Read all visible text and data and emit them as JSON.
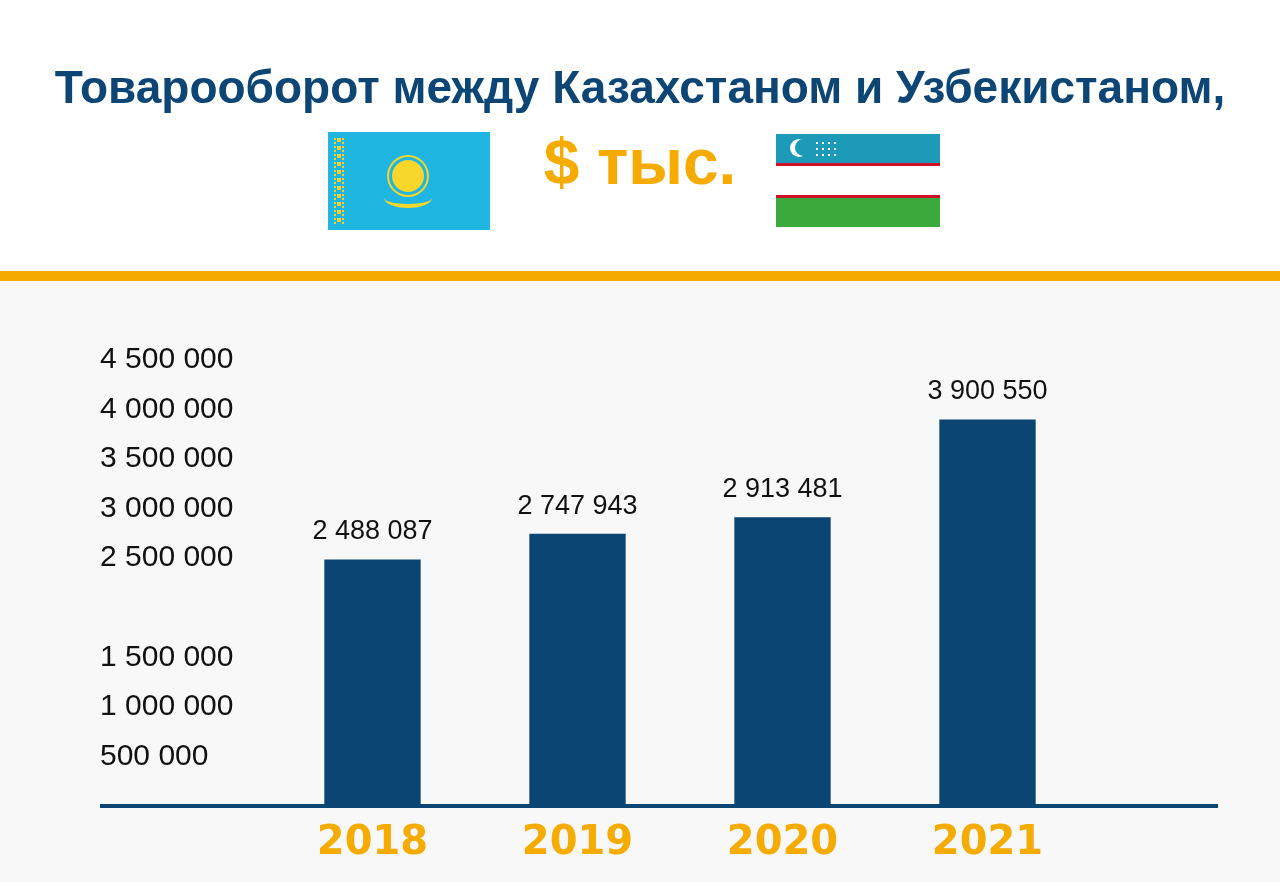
{
  "chart_data": {
    "type": "bar",
    "title": "Товарооборот между Казахстаном и Узбекистаном,",
    "subtitle": "$ тыс.",
    "categories": [
      "2018",
      "2019",
      "2020",
      "2021"
    ],
    "values": [
      2488087,
      2747943,
      2913481,
      3900550
    ],
    "value_labels": [
      "2 488 087",
      "2 747 943",
      "2 913 481",
      "3 900 550"
    ],
    "color": "#0b4573",
    "ylim": [
      0,
      4500000
    ],
    "yticks": [
      {
        "value": 500000,
        "label": "500 000"
      },
      {
        "value": 1000000,
        "label": "1 000 000"
      },
      {
        "value": 1500000,
        "label": "1 500 000"
      },
      {
        "value": 2500000,
        "label": "2 500 000"
      },
      {
        "value": 3000000,
        "label": "3 000 000"
      },
      {
        "value": 3500000,
        "label": "3 500 000"
      },
      {
        "value": 4000000,
        "label": "4 000 000"
      },
      {
        "value": 4500000,
        "label": "4 500 000"
      }
    ]
  }
}
